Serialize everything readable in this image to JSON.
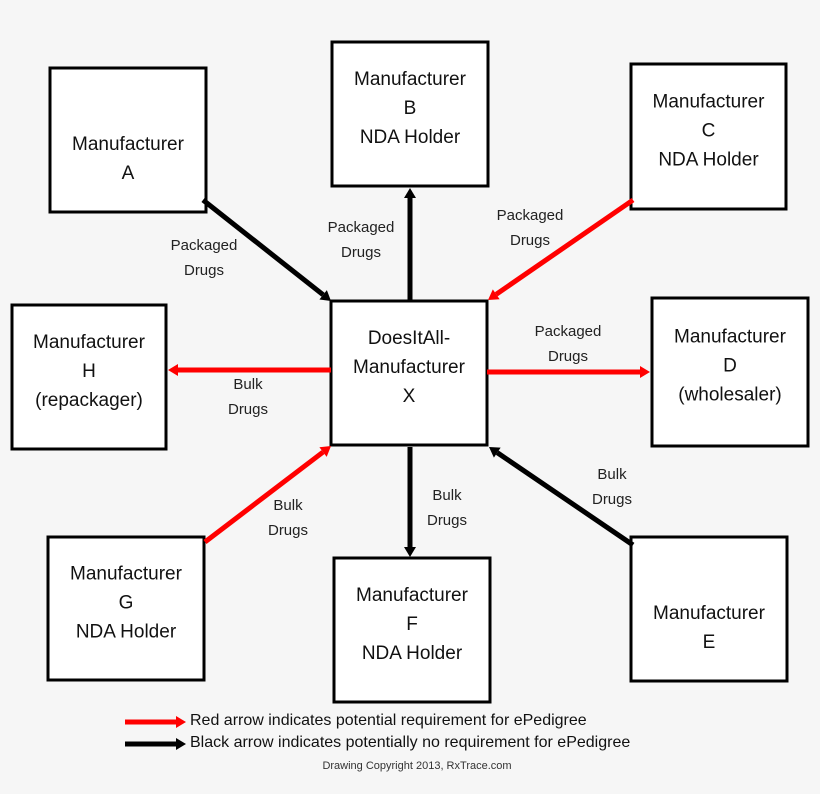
{
  "colors": {
    "red_arrow": "#ff0000",
    "black_arrow": "#000000",
    "background": "#f6f6f6"
  },
  "nodes": {
    "A": [
      "Manufacturer",
      "A"
    ],
    "B": [
      "Manufacturer",
      "B",
      "NDA Holder"
    ],
    "C": [
      "Manufacturer",
      "C",
      "NDA Holder"
    ],
    "D": [
      "Manufacturer",
      "D",
      "(wholesaler)"
    ],
    "E": [
      "Manufacturer",
      "E"
    ],
    "F": [
      "Manufacturer",
      "F",
      "NDA Holder"
    ],
    "G": [
      "Manufacturer",
      "G",
      "NDA Holder"
    ],
    "H": [
      "Manufacturer",
      "H",
      "(repackager)"
    ],
    "X": [
      "DoesItAll-",
      "Manufacturer",
      "X"
    ]
  },
  "edges": [
    {
      "from": "A",
      "to": "X",
      "color": "black",
      "label": [
        "Packaged",
        "Drugs"
      ]
    },
    {
      "from": "X",
      "to": "B",
      "color": "black",
      "label": [
        "Packaged",
        "Drugs"
      ]
    },
    {
      "from": "C",
      "to": "X",
      "color": "red",
      "label": [
        "Packaged",
        "Drugs"
      ]
    },
    {
      "from": "X",
      "to": "D",
      "color": "red",
      "label": [
        "Packaged",
        "Drugs"
      ]
    },
    {
      "from": "X",
      "to": "H",
      "color": "red",
      "label": [
        "Bulk",
        "Drugs"
      ]
    },
    {
      "from": "G",
      "to": "X",
      "color": "red",
      "label": [
        "Bulk",
        "Drugs"
      ]
    },
    {
      "from": "X",
      "to": "F",
      "color": "black",
      "label": [
        "Bulk",
        "Drugs"
      ]
    },
    {
      "from": "E",
      "to": "X",
      "color": "black",
      "label": [
        "Bulk",
        "Drugs"
      ]
    }
  ],
  "legend": {
    "red": "Red arrow indicates potential requirement for ePedigree",
    "black": "Black arrow indicates potentially no requirement for ePedigree"
  },
  "copyright": "Drawing Copyright 2013, RxTrace.com"
}
